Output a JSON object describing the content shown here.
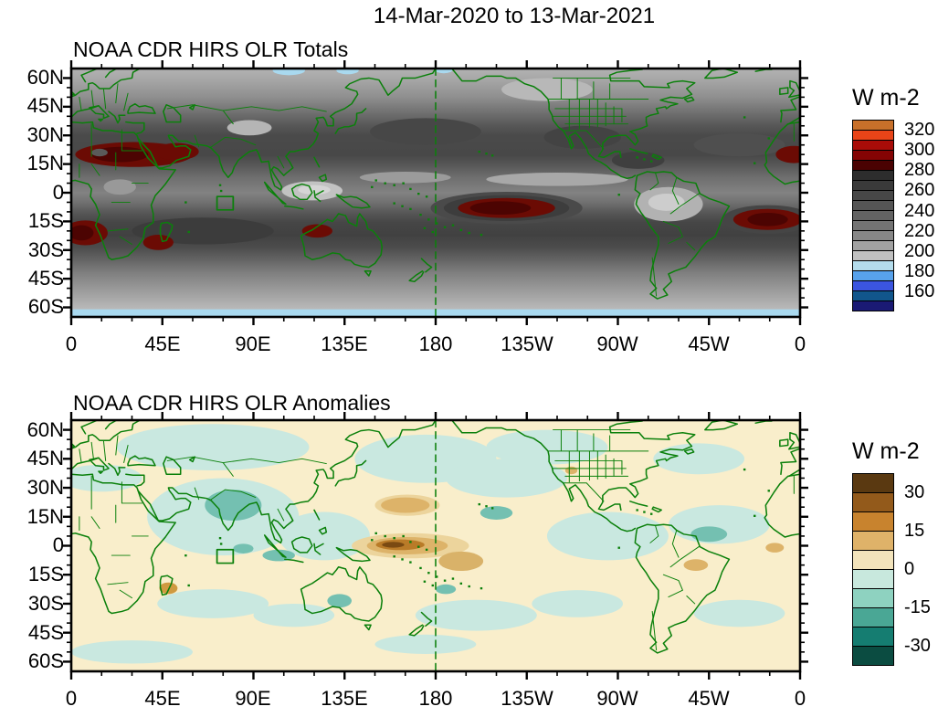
{
  "figure_title": "14-Mar-2020 to 13-Mar-2021",
  "axes": {
    "lat_tick_labels": [
      "60N",
      "45N",
      "30N",
      "15N",
      "0",
      "15S",
      "30S",
      "45S",
      "60S"
    ],
    "lon_tick_labels": [
      "0",
      "45E",
      "90E",
      "135E",
      "180",
      "135W",
      "90W",
      "45W",
      "0"
    ]
  },
  "panels": [
    {
      "title": "NOAA CDR HIRS OLR Totals",
      "colorbar": {
        "label": "W m-2",
        "tick_labels": [
          "320",
          "300",
          "280",
          "260",
          "240",
          "220",
          "200",
          "180",
          "160"
        ],
        "band_colors": [
          "#c8702a",
          "#e84418",
          "#a80c08",
          "#840404",
          "#4a0202",
          "#2d2d2d",
          "#3a3a3a",
          "#474747",
          "#555555",
          "#636363",
          "#737373",
          "#878787",
          "#a2a2a2",
          "#c0c0c0",
          "#b4dcec",
          "#58a2ec",
          "#3b55e0",
          "#11568c",
          "#1a1a74"
        ]
      }
    },
    {
      "title": "NOAA CDR HIRS OLR Anomalies",
      "colorbar": {
        "label": "W m-2",
        "tick_labels": [
          "30",
          "15",
          "0",
          "-15",
          "-30"
        ],
        "band_colors": [
          "#5a3911",
          "#935a1b",
          "#c8832e",
          "#dfb269",
          "#f2e3bb",
          "#c8e8dd",
          "#8ed2c0",
          "#4aa795",
          "#157d71",
          "#0b4c41"
        ]
      }
    }
  ],
  "overlays": {
    "coastline_color": "#0b800b",
    "dateline": "dashed green meridian at 180",
    "region_box": "green outlined box in equatorial Indian Ocean (~72E-80E, 2S-9S)"
  },
  "chart_data": [
    {
      "type": "heatmap",
      "title": "NOAA CDR HIRS OLR Totals",
      "units": "W m-2",
      "projection": "cylindrical, longitude 0E eastward to 360 (0), latitude 65N to 65S",
      "contour_interval": 10,
      "levels": [
        160,
        180,
        200,
        220,
        240,
        260,
        280,
        300,
        320
      ],
      "legend_position": "right",
      "features": [
        {
          "region": "North Africa / Arabian Peninsula",
          "lat": "10N-30N",
          "lon": "0E-60E",
          "value": ">300, core >310"
        },
        {
          "region": "West Africa at map wrap edge",
          "lat": "12N-22N",
          "lon": "15W-0",
          "value": ">300"
        },
        {
          "region": "SE Atlantic off Angola/Namibia",
          "lat": "15S-30S",
          "lon": "0E-15E",
          "value": ">300"
        },
        {
          "region": "SW Indian Ocean near Madagascar",
          "lat": "20S-30S",
          "lon": "35E-50E",
          "value": ">300"
        },
        {
          "region": "NW Australia",
          "lat": "15S-25S",
          "lon": "110E-130E",
          "value": ">300"
        },
        {
          "region": "South-central Pacific",
          "lat": "0-15S",
          "lon": "170W-120W",
          "value": "broad maximum >300"
        },
        {
          "region": "Subtropical South Atlantic",
          "lat": "5S-20S",
          "lon": "35W-0",
          "value": ">300"
        },
        {
          "region": "Amazon, Maritime Continent, Tibetan Plateau",
          "value": "local minima ~200-220 (light gray)"
        },
        {
          "region": "Midlatitude oceans 30-45N and 30-45S",
          "value": "220-250"
        },
        {
          "region": "Near 60S band and parts of 60N",
          "value": "<200 (light blue), decreasing poleward toward 160"
        }
      ]
    },
    {
      "type": "heatmap",
      "title": "NOAA CDR HIRS OLR Anomalies",
      "units": "W m-2",
      "projection": "cylindrical, longitude 0E eastward to 360 (0), latitude 65N to 65S",
      "contour_interval": 7.5,
      "levels": [
        -30,
        -15,
        0,
        15,
        30
      ],
      "legend_position": "right",
      "features": [
        {
          "region": "Equatorial west Pacific",
          "lat": "5N-5S",
          "lon": "150E-175E",
          "value": "strong positive anomaly, core >+30 (dark brown)"
        },
        {
          "region": "Equatorial west-central Pacific halo",
          "lat": "8N-8S",
          "lon": "140E-155W",
          "value": "+7.5 to +15 (tan)"
        },
        {
          "region": "NW tropical Pacific",
          "lat": "~20N",
          "lon": "160E-175E",
          "value": "+7.5 to +15"
        },
        {
          "region": "South of equator east of dateline",
          "lat": "5S-12S",
          "lon": "180-160W",
          "value": "+7.5 to +15"
        },
        {
          "region": "India / Arabian Sea / Bay of Bengal",
          "value": "-7.5 to -15 (teal, enhanced convection)"
        },
        {
          "region": "South of Sumatra-Java, central Australia, NE South America, NE tropical Pacific",
          "value": "-7.5 to -15"
        },
        {
          "region": "Most remaining areas",
          "value": "weak anomalies between -7.5 and +7.5 (mottled cream / pale teal)"
        }
      ]
    }
  ]
}
